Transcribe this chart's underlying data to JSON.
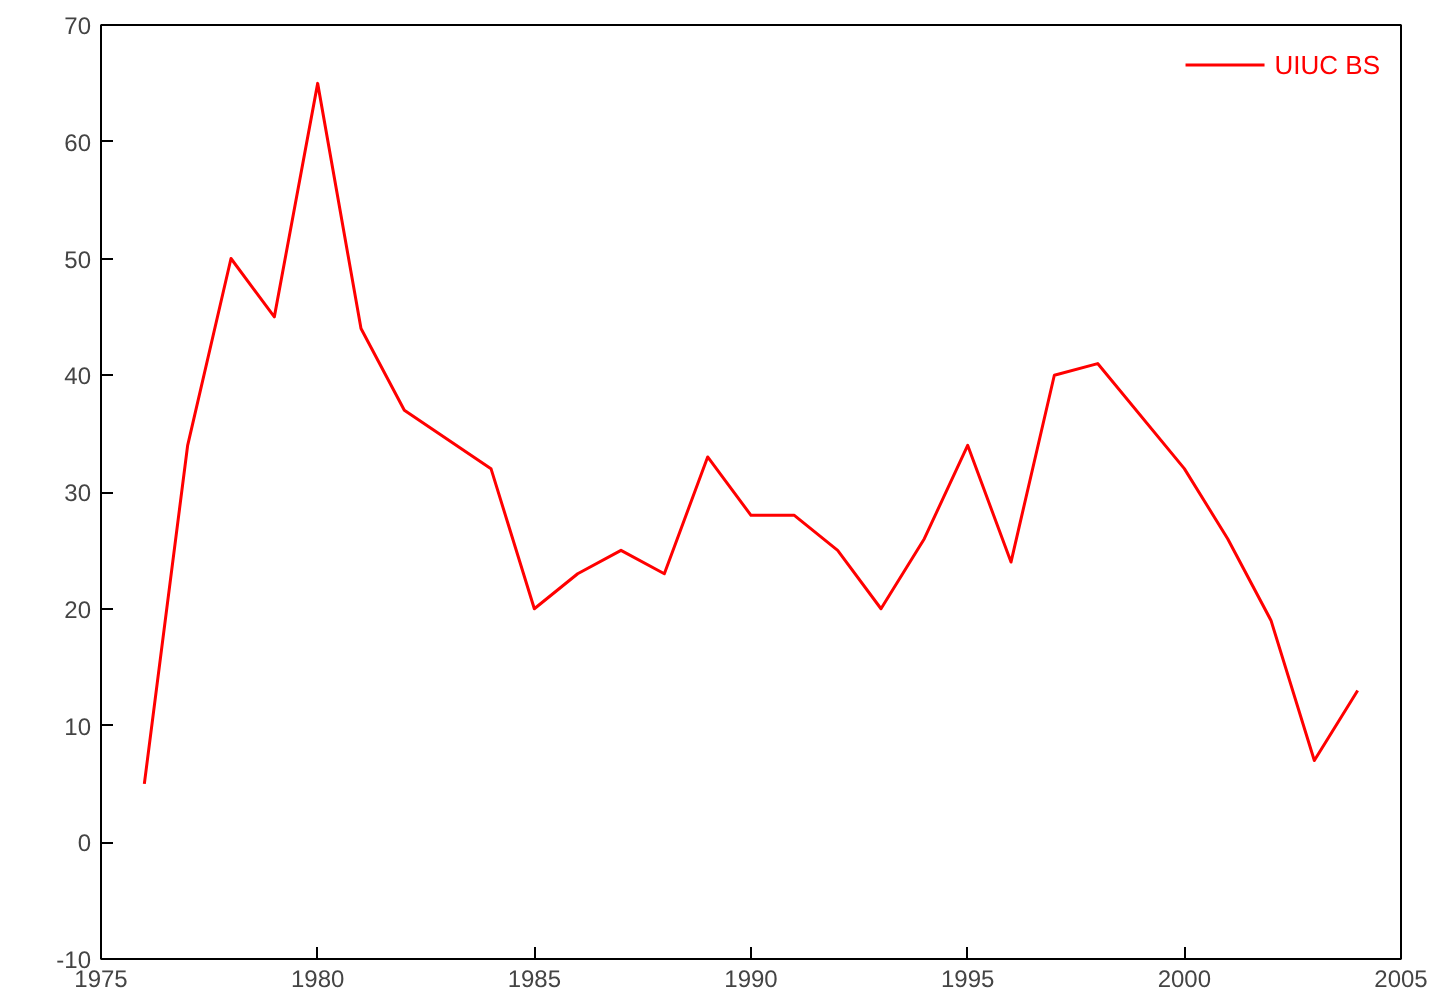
{
  "chart_data": {
    "type": "line",
    "x": [
      1976,
      1977,
      1978,
      1979,
      1980,
      1981,
      1982,
      1984,
      1985,
      1986,
      1987,
      1988,
      1989,
      1990,
      1991,
      1992,
      1993,
      1994,
      1995,
      1996,
      1997,
      1998,
      2000,
      2001,
      2002,
      2003,
      2004
    ],
    "series": [
      {
        "name": "UIUC BS",
        "color": "#ff0000",
        "values": [
          5,
          34,
          50,
          45,
          65,
          44,
          37,
          32,
          20,
          23,
          25,
          23,
          33,
          28,
          28,
          25,
          20,
          26,
          34,
          24,
          40,
          41,
          32,
          26,
          19,
          7,
          13
        ]
      }
    ],
    "xlim": [
      1975,
      2005
    ],
    "ylim": [
      -10,
      70
    ],
    "xticks": [
      1975,
      1980,
      1985,
      1990,
      1995,
      2000,
      2005
    ],
    "yticks": [
      -10,
      0,
      10,
      20,
      30,
      40,
      50,
      60,
      70
    ],
    "grid": false,
    "legend": "top right",
    "marker": "none",
    "line_style": "solid"
  }
}
